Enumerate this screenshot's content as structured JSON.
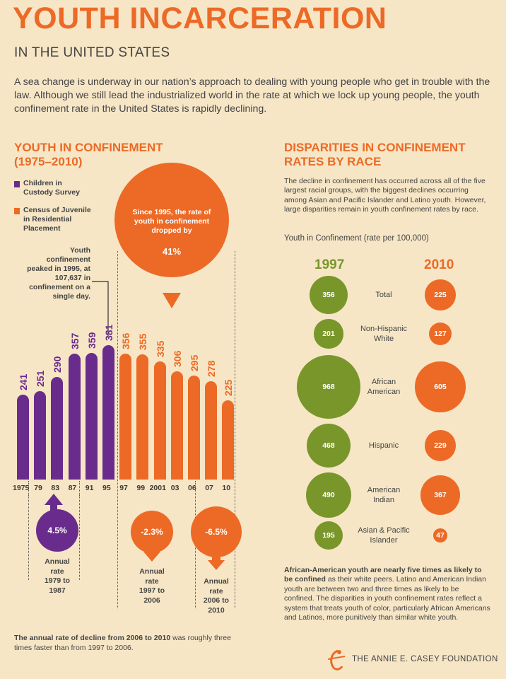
{
  "header": {
    "title": "YOUTH INCARCERATION",
    "subtitle": "IN THE UNITED STATES",
    "intro": "A sea change is underway in our nation’s approach to dealing with young people who get in trouble with the law. Although we still lead the industrialized world in the rate at which we lock up young people, the youth confinement rate in the United States is rapidly declining."
  },
  "left_section": {
    "title_line1": "YOUTH IN CONFINEMENT",
    "title_line2": "(1975–2010)",
    "legend": [
      {
        "line1": "Children in",
        "line2": "Custody Survey",
        "color": "#6a2c8c"
      },
      {
        "line1": "Census of Juvenile",
        "line2": "in Residential",
        "line3": "Placement",
        "color": "#ec6a26"
      }
    ],
    "peak_note": [
      "Youth",
      "confinement",
      "peaked in 1995, at",
      "107,637 in",
      "confinement on a",
      "single day."
    ],
    "callout": {
      "text": "Since 1995, the rate of youth in confinement dropped by",
      "percent": "41%"
    },
    "footer_note_bold": "The annual rate of decline from 2006 to 2010",
    "footer_note_rest": " was roughly three times faster than from 1997 to 2006."
  },
  "chart_data": {
    "type": "bar",
    "title": "YOUTH IN CONFINEMENT (1975–2010)",
    "categories": [
      "1975",
      "79",
      "83",
      "87",
      "91",
      "95",
      "97",
      "99",
      "2001",
      "03",
      "06",
      "07",
      "10"
    ],
    "series": [
      {
        "name": "Children in Custody Survey",
        "values": [
          241,
          251,
          290,
          357,
          359,
          381,
          null,
          null,
          null,
          null,
          null,
          null,
          null
        ],
        "color": "#6a2c8c"
      },
      {
        "name": "Census of Juvenile in Residential Placement",
        "values": [
          null,
          null,
          null,
          null,
          null,
          null,
          356,
          355,
          335,
          306,
          295,
          278,
          225
        ],
        "color": "#ec6a26"
      }
    ],
    "ylim": [
      0,
      400
    ],
    "annual_rates": [
      {
        "value": "4.5%",
        "caption": [
          "Annual",
          "rate",
          "1979 to",
          "1987"
        ],
        "color": "#6a2c8c",
        "direction": "up"
      },
      {
        "value": "-2.3%",
        "caption": [
          "Annual",
          "rate",
          "1997 to",
          "2006"
        ],
        "color": "#ec6a26",
        "direction": "down"
      },
      {
        "value": "-6.5%",
        "caption": [
          "Annual",
          "rate",
          "2006 to",
          "2010"
        ],
        "color": "#ec6a26",
        "direction": "down"
      }
    ]
  },
  "right_section": {
    "title_line1": "DISPARITIES IN CONFINEMENT",
    "title_line2": "RATES BY RACE",
    "intro": "The decline in confinement has occurred across all of the five largest racial groups, with the biggest declines occurring among Asian and Pacific Islander and Latino youth. However, large disparities remain in youth confinement rates by race.",
    "metric_label": "Youth in Confinement (rate per 100,000)",
    "year_a": "1997",
    "year_b": "2010",
    "color_a": "#79962a",
    "color_b": "#ec6a26",
    "groups": [
      {
        "label_1": "Total",
        "label_2": "",
        "v1997": 356,
        "v2010": 225
      },
      {
        "label_1": "Non-Hispanic",
        "label_2": "White",
        "v1997": 201,
        "v2010": 127
      },
      {
        "label_1": "African",
        "label_2": "American",
        "v1997": 968,
        "v2010": 605
      },
      {
        "label_1": "Hispanic",
        "label_2": "",
        "v1997": 468,
        "v2010": 229
      },
      {
        "label_1": "American",
        "label_2": "Indian",
        "v1997": 490,
        "v2010": 367
      },
      {
        "label_1": "Asian & Pacific",
        "label_2": "Islander",
        "v1997": 195,
        "v2010": 47
      }
    ],
    "conclusion_bold": "African-American youth are nearly five times as likely to be confined",
    "conclusion_rest": " as their white peers. Latino and American Indian youth are between two and three times as likely to be confined. The disparities in youth confinement rates reflect a system that treats youth of color, particularly African Americans and Latinos, more punitively than similar white youth.",
    "logo_text": "THE ANNIE E. CASEY FOUNDATION"
  }
}
